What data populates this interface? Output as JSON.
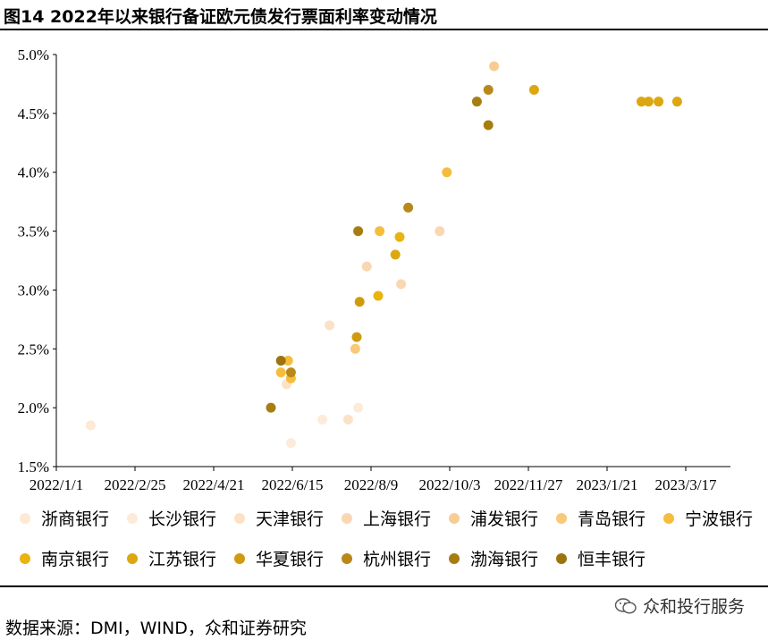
{
  "title": "图14 2022年以来银行备证欧元债发行票面利率变动情况",
  "source": "数据来源：DMI，WIND，众和证券研究",
  "watermark": "众和投行服务",
  "chart_data": {
    "type": "scatter",
    "x_ticks": [
      "2022/1/1",
      "2022/2/25",
      "2022/4/21",
      "2022/6/15",
      "2022/8/9",
      "2022/10/3",
      "2022/11/27",
      "2023/1/21",
      "2023/3/17"
    ],
    "y_ticks": [
      "1.5%",
      "2.0%",
      "2.5%",
      "3.0%",
      "3.5%",
      "4.0%",
      "4.5%",
      "5.0%"
    ],
    "ylim": [
      1.5,
      5.0
    ],
    "xlim": [
      "2022/1/1",
      "2023/4/12"
    ],
    "grid": false,
    "legend_position": "bottom",
    "series": [
      {
        "name": "浙商银行",
        "color": "#fde9d4",
        "points": [
          {
            "x": "2022/1/25",
            "y": 1.85
          }
        ]
      },
      {
        "name": "长沙银行",
        "color": "#fdebd9",
        "points": [
          {
            "x": "2022/6/14",
            "y": 1.7
          },
          {
            "x": "2022/7/6",
            "y": 1.9
          },
          {
            "x": "2022/7/31",
            "y": 2.0
          }
        ]
      },
      {
        "name": "天津银行",
        "color": "#fbe2c6",
        "points": [
          {
            "x": "2022/6/11",
            "y": 2.2
          },
          {
            "x": "2022/7/11",
            "y": 2.7
          },
          {
            "x": "2022/7/24",
            "y": 1.9
          }
        ]
      },
      {
        "name": "上海银行",
        "color": "#f9d7b3",
        "points": [
          {
            "x": "2022/8/6",
            "y": 3.2
          },
          {
            "x": "2022/8/30",
            "y": 3.05
          },
          {
            "x": "2022/9/26",
            "y": 3.5
          }
        ]
      },
      {
        "name": "浦发银行",
        "color": "#f7cd95",
        "points": [
          {
            "x": "2022/11/3",
            "y": 4.9
          }
        ]
      },
      {
        "name": "青岛银行",
        "color": "#f7c978",
        "points": [
          {
            "x": "2022/7/29",
            "y": 2.5
          }
        ]
      },
      {
        "name": "宁波银行",
        "color": "#f5bd3b",
        "points": [
          {
            "x": "2022/6/7",
            "y": 2.3
          },
          {
            "x": "2022/6/12",
            "y": 2.4
          },
          {
            "x": "2022/6/14",
            "y": 2.25
          },
          {
            "x": "2022/8/15",
            "y": 3.5
          },
          {
            "x": "2022/10/1",
            "y": 4.0
          }
        ]
      },
      {
        "name": "南京银行",
        "color": "#eab30e",
        "points": [
          {
            "x": "2022/8/14",
            "y": 2.95
          },
          {
            "x": "2022/8/29",
            "y": 3.45
          }
        ]
      },
      {
        "name": "江苏银行",
        "color": "#dca710",
        "points": [
          {
            "x": "2022/8/26",
            "y": 3.3
          },
          {
            "x": "2022/12/1",
            "y": 4.7
          },
          {
            "x": "2023/2/14",
            "y": 4.6
          },
          {
            "x": "2023/2/19",
            "y": 4.6
          },
          {
            "x": "2023/2/26",
            "y": 4.6
          },
          {
            "x": "2023/3/11",
            "y": 4.6
          }
        ]
      },
      {
        "name": "华夏银行",
        "color": "#cf9b0e",
        "points": [
          {
            "x": "2022/7/30",
            "y": 2.6
          },
          {
            "x": "2022/8/1",
            "y": 2.9
          }
        ]
      },
      {
        "name": "杭州银行",
        "color": "#b9881a",
        "points": [
          {
            "x": "2022/6/14",
            "y": 2.3
          },
          {
            "x": "2022/9/4",
            "y": 3.7
          },
          {
            "x": "2022/10/30",
            "y": 4.7
          }
        ]
      },
      {
        "name": "渤海银行",
        "color": "#a77d12",
        "points": [
          {
            "x": "2022/5/31",
            "y": 2.0
          },
          {
            "x": "2022/7/31",
            "y": 3.5
          },
          {
            "x": "2022/10/22",
            "y": 4.6
          },
          {
            "x": "2022/10/30",
            "y": 4.4
          }
        ]
      },
      {
        "name": "恒丰银行",
        "color": "#9c740f",
        "points": [
          {
            "x": "2022/6/7",
            "y": 2.4
          }
        ]
      }
    ]
  }
}
